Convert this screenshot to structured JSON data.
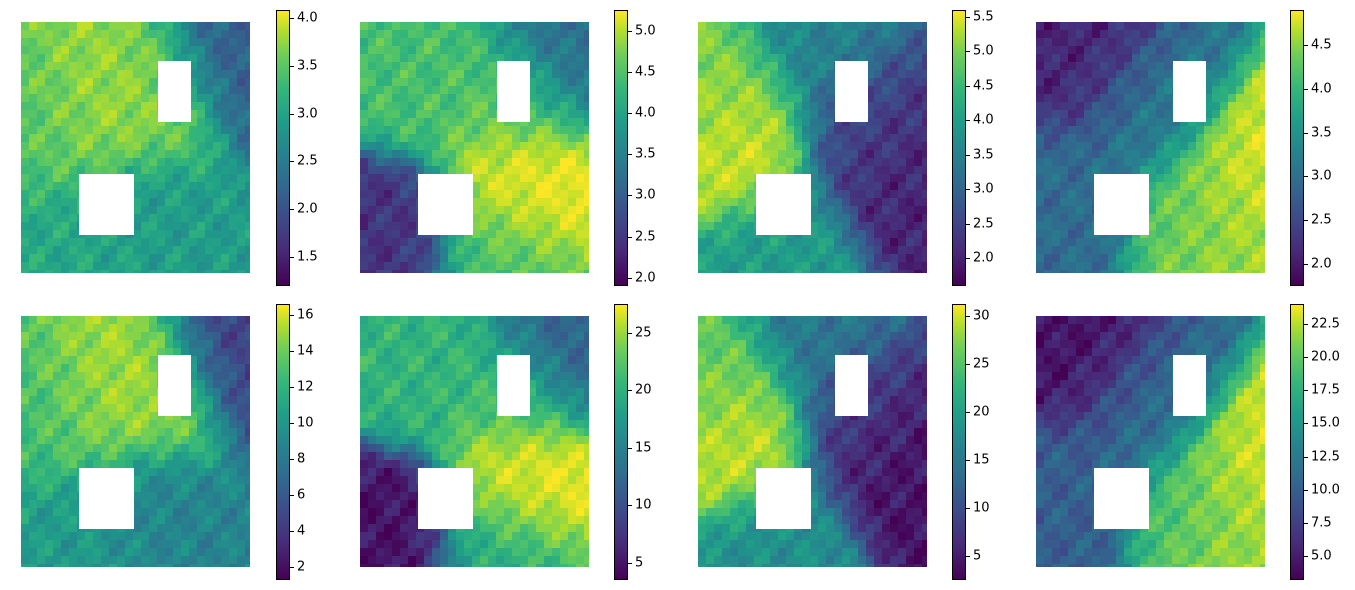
{
  "chart_data": [
    {
      "type": "heatmap",
      "colormap": "viridis",
      "colorbar_ticks": [
        "1.5",
        "2.0",
        "2.5",
        "3.0",
        "3.5",
        "4.0"
      ],
      "value_range": [
        1.2,
        4.08
      ]
    },
    {
      "type": "heatmap",
      "colormap": "viridis",
      "colorbar_ticks": [
        "2.0",
        "2.5",
        "3.0",
        "3.5",
        "4.0",
        "4.5",
        "5.0"
      ],
      "value_range": [
        1.9,
        5.25
      ]
    },
    {
      "type": "heatmap",
      "colormap": "viridis",
      "colorbar_ticks": [
        "2.0",
        "2.5",
        "3.0",
        "3.5",
        "4.0",
        "4.5",
        "5.0",
        "5.5"
      ],
      "value_range": [
        1.6,
        5.6
      ]
    },
    {
      "type": "heatmap",
      "colormap": "viridis",
      "colorbar_ticks": [
        "2.0",
        "2.5",
        "3.0",
        "3.5",
        "4.0",
        "4.5"
      ],
      "value_range": [
        1.75,
        4.9
      ]
    },
    {
      "type": "heatmap",
      "colormap": "viridis",
      "colorbar_ticks": [
        "2",
        "4",
        "6",
        "8",
        "10",
        "12",
        "14",
        "16"
      ],
      "value_range": [
        1.3,
        16.6
      ]
    },
    {
      "type": "heatmap",
      "colormap": "viridis",
      "colorbar_ticks": [
        "5",
        "10",
        "15",
        "20",
        "25"
      ],
      "value_range": [
        3.5,
        27.5
      ]
    },
    {
      "type": "heatmap",
      "colormap": "viridis",
      "colorbar_ticks": [
        "5",
        "10",
        "15",
        "20",
        "25",
        "30"
      ],
      "value_range": [
        2.5,
        31.2
      ]
    },
    {
      "type": "heatmap",
      "colormap": "viridis",
      "colorbar_ticks": [
        "5.0",
        "7.5",
        "10.0",
        "12.5",
        "15.0",
        "17.5",
        "20.0",
        "22.5"
      ],
      "value_range": [
        3.2,
        24.0
      ]
    }
  ]
}
